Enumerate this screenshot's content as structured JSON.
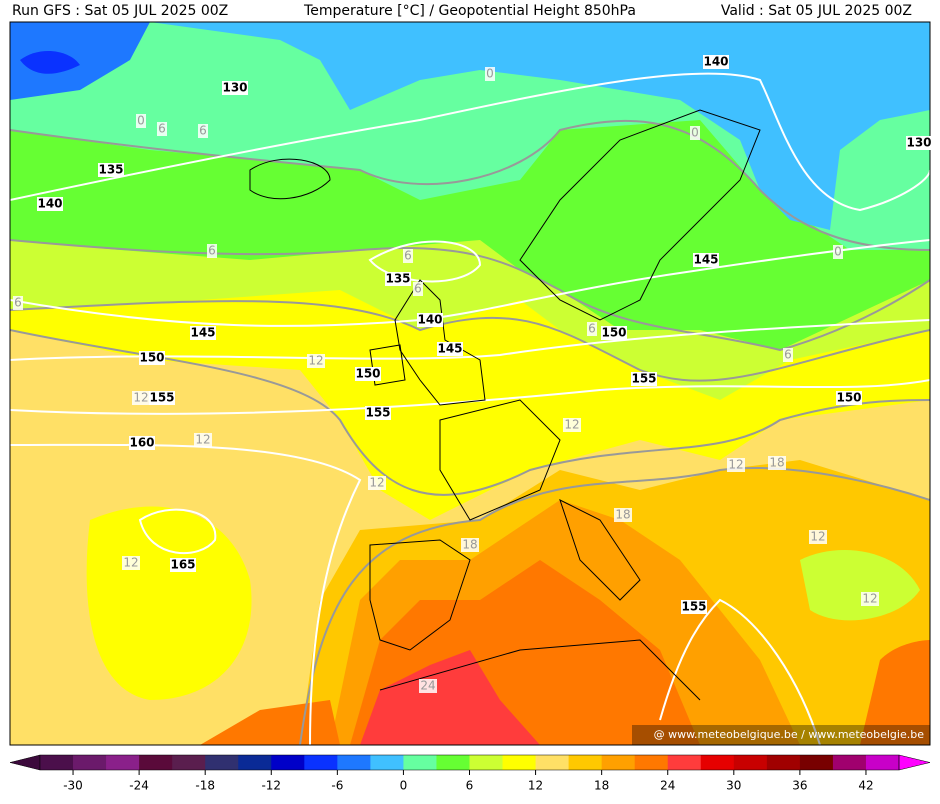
{
  "header": {
    "run": "Run GFS : Sat 05 JUL 2025 00Z",
    "title": "Temperature [°C] / Geopotential Height 850hPa",
    "valid": "Valid : Sat 05 JUL 2025 00Z"
  },
  "map": {
    "height_labels": [
      130,
      135,
      140,
      140,
      130,
      135,
      140,
      145,
      145,
      150,
      145,
      150,
      150,
      155,
      155,
      155,
      150,
      160,
      165,
      155
    ],
    "temperature_labels": [
      0,
      0,
      6,
      6,
      0,
      0,
      6,
      6,
      6,
      6,
      6,
      6,
      12,
      12,
      12,
      12,
      12,
      18,
      12,
      18,
      18,
      12,
      12,
      12,
      24
    ]
  },
  "watermark": "@ www.meteobelgique.be / www.meteobelgie.be",
  "colorbar": {
    "lim": [
      -33,
      45
    ],
    "ticks": [
      -30,
      -24,
      -18,
      -12,
      -6,
      0,
      6,
      12,
      18,
      24,
      30,
      36,
      42
    ],
    "under_color": "#3c0a3c",
    "over_color": "#ff00ff",
    "colors": [
      "#4b0f4b",
      "#6b1a6b",
      "#8a208a",
      "#5a0a3a",
      "#5a1e4e",
      "#303070",
      "#0a2a96",
      "#0000c8",
      "#0a32ff",
      "#1e78ff",
      "#40c0ff",
      "#66ffa0",
      "#66ff33",
      "#ccff33",
      "#ffff00",
      "#ffe066",
      "#ffc800",
      "#ffa000",
      "#ff7800",
      "#ff3c3c",
      "#e60000",
      "#c80000",
      "#a00000",
      "#780000",
      "#a0006e",
      "#c800c8"
    ]
  }
}
